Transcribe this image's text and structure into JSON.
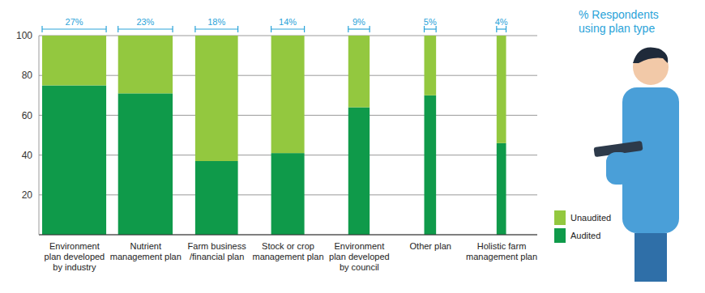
{
  "chart_data": {
    "type": "bar",
    "stacked": true,
    "categories": [
      "Environment plan developed by industry",
      "Nutrient management plan",
      "Farm business /financial plan",
      "Stock or crop management plan",
      "Environment plan developed by council",
      "Other plan",
      "Holistic farm management plan"
    ],
    "series": [
      {
        "name": "Audited",
        "color": "#0f9a4a",
        "values": [
          75,
          71,
          37,
          41,
          64,
          70,
          46
        ]
      },
      {
        "name": "Unaudited",
        "color": "#93c83f",
        "values": [
          25,
          29,
          63,
          59,
          36,
          30,
          54
        ]
      }
    ],
    "ylim": [
      0,
      100
    ],
    "yticks": [
      20,
      40,
      60,
      80,
      100
    ],
    "grid": true,
    "legend": "lower right",
    "respondent_share": {
      "title": "% Respondents using plan type",
      "values": [
        27,
        23,
        18,
        14,
        9,
        5,
        4
      ],
      "value_labels": [
        "27%",
        "23%",
        "18%",
        "14%",
        "9%",
        "5%",
        "4%"
      ]
    }
  }
}
